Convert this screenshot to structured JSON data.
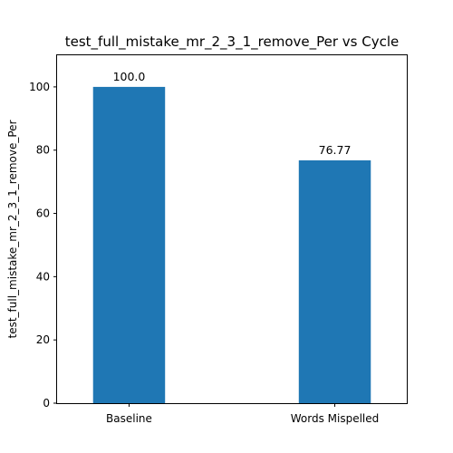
{
  "chart_data": {
    "type": "bar",
    "title": "test_full_mistake_mr_2_3_1_remove_Per vs Cycle",
    "xlabel": "",
    "ylabel": "test_full_mistake_mr_2_3_1_remove_Per",
    "categories": [
      "Baseline",
      "Words Mispelled"
    ],
    "values": [
      100.0,
      76.77
    ],
    "data_labels": [
      "100.0",
      "76.77"
    ],
    "ylim": [
      0,
      110
    ],
    "yticks": [
      0,
      20,
      40,
      60,
      80,
      100
    ],
    "grid": false,
    "bar_color": "#1f77b4"
  }
}
